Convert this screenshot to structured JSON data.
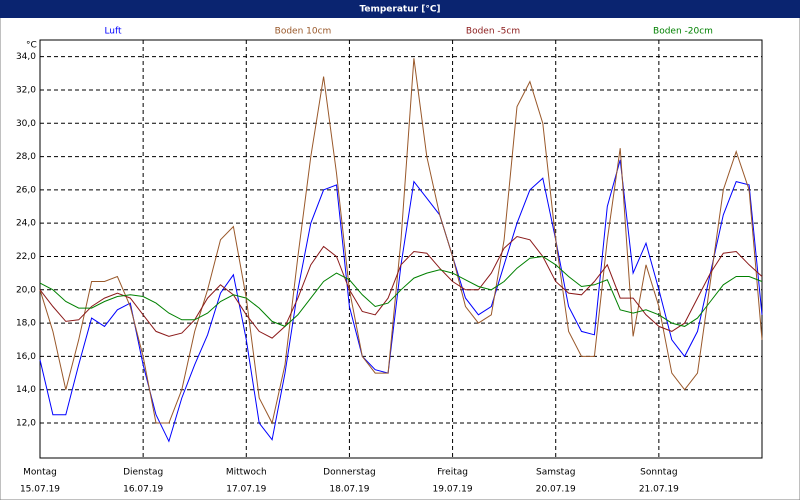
{
  "chart_data": {
    "type": "line",
    "title": "Temperatur [°C]",
    "y_unit": "°C",
    "xlim": [
      0,
      7
    ],
    "ylim": [
      9.9,
      35.0
    ],
    "xticks": [
      {
        "value": 0,
        "label": "Montag"
      },
      {
        "value": 1,
        "label": "Dienstag"
      },
      {
        "value": 2,
        "label": "Mittwoch"
      },
      {
        "value": 3,
        "label": "Donnerstag"
      },
      {
        "value": 4,
        "label": "Freitag"
      },
      {
        "value": 5,
        "label": "Samstag"
      },
      {
        "value": 6,
        "label": "Sonntag"
      }
    ],
    "xtick_dates": [
      "15.07.19",
      "16.07.19",
      "17.07.19",
      "18.07.19",
      "19.07.19",
      "20.07.19",
      "21.07.19"
    ],
    "yticks": [
      {
        "value": 12,
        "label": "12,0"
      },
      {
        "value": 14,
        "label": "14,0"
      },
      {
        "value": 16,
        "label": "16,0"
      },
      {
        "value": 18,
        "label": "18,0"
      },
      {
        "value": 20,
        "label": "20,0"
      },
      {
        "value": 22,
        "label": "22,0"
      },
      {
        "value": 24,
        "label": "24,0"
      },
      {
        "value": 26,
        "label": "26,0"
      },
      {
        "value": 28,
        "label": "28,0"
      },
      {
        "value": 30,
        "label": "30,0"
      },
      {
        "value": 32,
        "label": "32,0"
      },
      {
        "value": 34,
        "label": "34,0"
      }
    ],
    "grid": true,
    "x": [
      0,
      0.125,
      0.25,
      0.375,
      0.5,
      0.625,
      0.75,
      0.875,
      1,
      1.125,
      1.25,
      1.375,
      1.5,
      1.625,
      1.75,
      1.875,
      2,
      2.125,
      2.25,
      2.375,
      2.5,
      2.625,
      2.75,
      2.875,
      3,
      3.125,
      3.25,
      3.375,
      3.5,
      3.625,
      3.75,
      3.875,
      4,
      4.125,
      4.25,
      4.375,
      4.5,
      4.625,
      4.75,
      4.875,
      5,
      5.125,
      5.25,
      5.375,
      5.5,
      5.625,
      5.75,
      5.875,
      6,
      6.125,
      6.25,
      6.375,
      6.5,
      6.625,
      6.75,
      6.875,
      7
    ],
    "series": [
      {
        "name": "Luft",
        "color": "#0000ff",
        "values": [
          15.8,
          12.5,
          12.5,
          15.5,
          18.3,
          17.8,
          18.8,
          19.2,
          15.5,
          12.5,
          10.9,
          13.5,
          15.5,
          17.3,
          19.8,
          20.9,
          17,
          12,
          11,
          15,
          20,
          24,
          26,
          26.3,
          19,
          16,
          15.2,
          15,
          21.5,
          26.5,
          25.5,
          24.5,
          22,
          19.5,
          18.5,
          19,
          21.5,
          24,
          26,
          26.7,
          23,
          19,
          17.5,
          17.3,
          25,
          27.8,
          21,
          22.8,
          20,
          17,
          16,
          17.5,
          21,
          24.5,
          26.5,
          26.3,
          18.5
        ]
      },
      {
        "name": "Boden 10cm",
        "color": "#99582a",
        "values": [
          20,
          17.5,
          14,
          17,
          20.5,
          20.5,
          20.8,
          19,
          16,
          12,
          12,
          14,
          17.5,
          20,
          23,
          23.8,
          19.5,
          13.5,
          12,
          15.5,
          22,
          28,
          32.8,
          27,
          20,
          16,
          15,
          15,
          23,
          33.9,
          28,
          24.5,
          22,
          19,
          18,
          18.5,
          23,
          31,
          32.5,
          30,
          23,
          17.5,
          16,
          16,
          23,
          28.5,
          17.2,
          21.5,
          19,
          15,
          14,
          15,
          20.5,
          26,
          28.3,
          26,
          17
        ]
      },
      {
        "name": "Boden -5cm",
        "color": "#8b1a1a",
        "values": [
          20,
          19,
          18.1,
          18.2,
          19,
          19.5,
          19.8,
          19.5,
          18.5,
          17.5,
          17.2,
          17.4,
          18.2,
          19.5,
          20.3,
          19.7,
          18.5,
          17.5,
          17.1,
          17.8,
          19.5,
          21.5,
          22.6,
          22,
          20,
          18.7,
          18.5,
          19.5,
          21.5,
          22.3,
          22.2,
          21.3,
          20.5,
          20,
          20,
          21,
          22.5,
          23.2,
          23,
          22,
          20.5,
          19.8,
          19.7,
          20.5,
          21.5,
          19.5,
          19.5,
          18.5,
          17.8,
          17.5,
          18,
          19.5,
          21,
          22.2,
          22.3,
          21.5,
          20.8
        ]
      },
      {
        "name": "Boden -20cm",
        "color": "#008000",
        "values": [
          20.4,
          20,
          19.3,
          18.9,
          18.9,
          19.3,
          19.6,
          19.7,
          19.6,
          19.2,
          18.6,
          18.2,
          18.2,
          18.6,
          19.3,
          19.7,
          19.5,
          18.9,
          18.1,
          17.8,
          18.5,
          19.5,
          20.5,
          21,
          20.6,
          19.7,
          19,
          19.2,
          20,
          20.7,
          21,
          21.2,
          21,
          20.6,
          20.2,
          20,
          20.5,
          21.3,
          21.9,
          22,
          21.5,
          20.8,
          20.2,
          20.3,
          20.6,
          18.8,
          18.6,
          18.8,
          18.5,
          18,
          17.8,
          18.3,
          19.3,
          20.3,
          20.8,
          20.8,
          20.5
        ]
      }
    ]
  }
}
